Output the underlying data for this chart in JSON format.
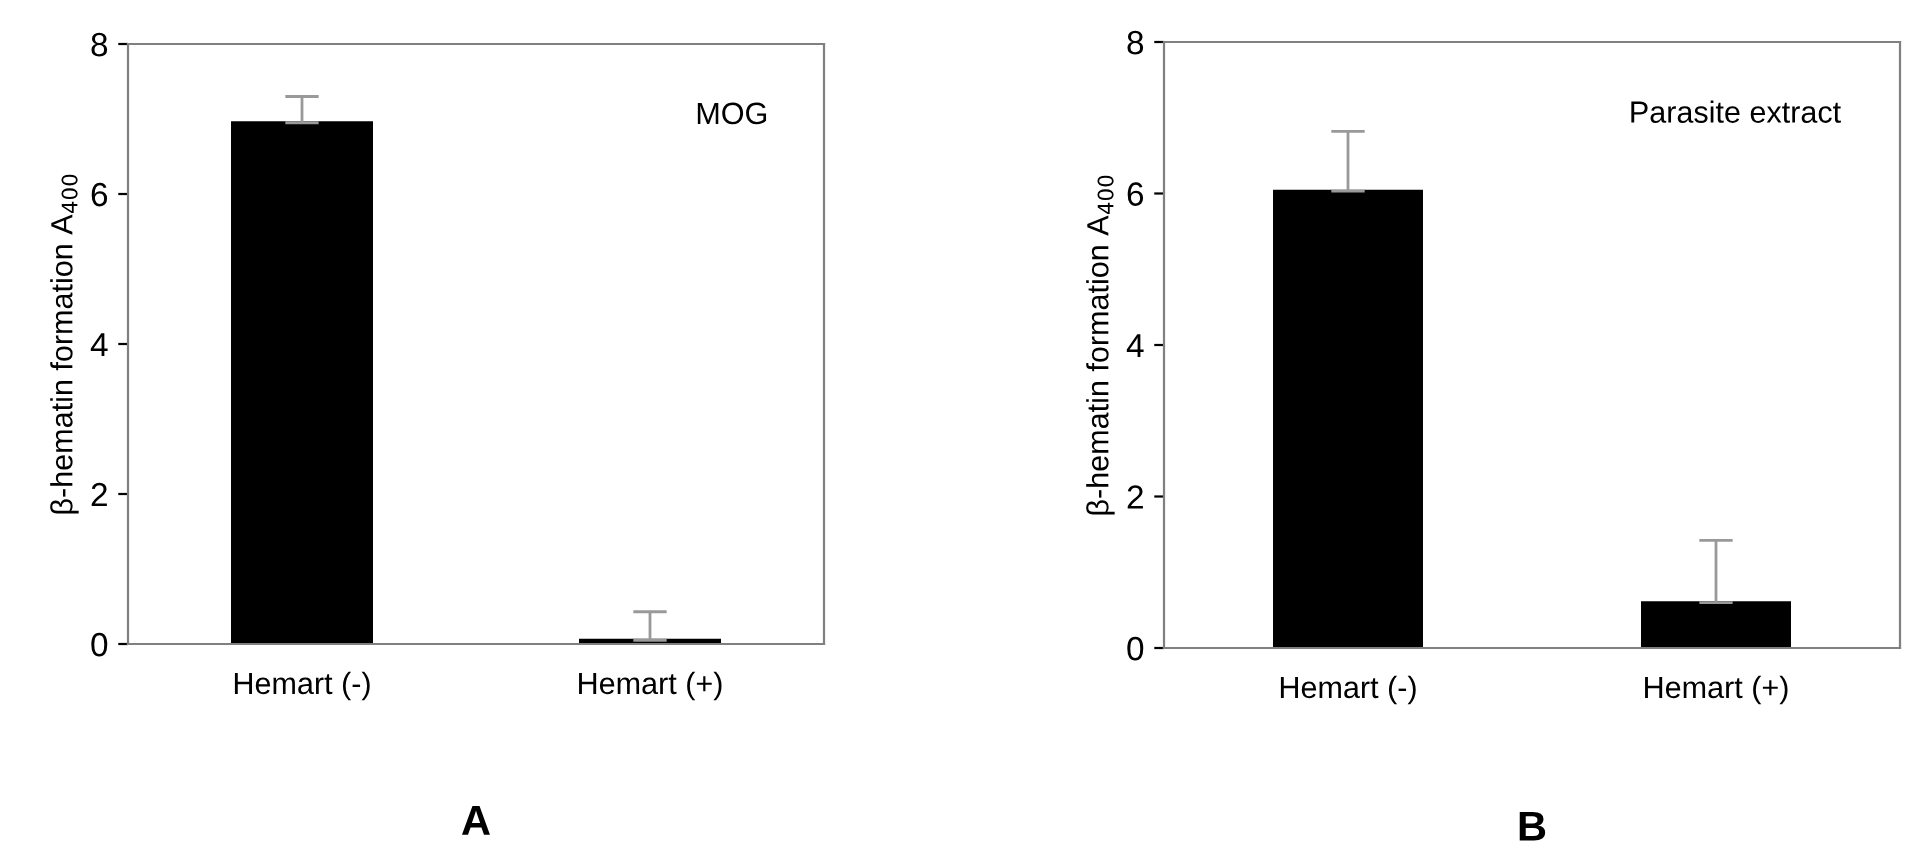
{
  "chart_data": [
    {
      "type": "bar",
      "ylabel": "β-hematin formation A$_{400}$",
      "categories": [
        "Hemart (-)",
        "Hemart (+)"
      ],
      "values": [
        6.95,
        0.05
      ],
      "errors": [
        [
          6.95,
          7.3
        ],
        [
          0.05,
          0.43
        ]
      ],
      "color": "#000000",
      "ylim": [
        0,
        8
      ],
      "yticks": [
        0,
        2,
        4,
        6,
        8
      ],
      "grid": false,
      "legend": false,
      "annotations": [
        "MOG",
        "A"
      ]
    },
    {
      "type": "bar",
      "ylabel": "β-hematin formation A$_{400}$",
      "categories": [
        "Hemart (-)",
        "Hemart (+)"
      ],
      "values": [
        6.03,
        0.6
      ],
      "errors": [
        [
          6.03,
          6.82
        ],
        [
          0.6,
          1.42
        ]
      ],
      "color": "#000000",
      "ylim": [
        0,
        8
      ],
      "yticks": [
        0,
        2,
        4,
        6,
        8
      ],
      "grid": false,
      "legend": false,
      "annotations": [
        "Parasite extract",
        "B"
      ]
    }
  ]
}
